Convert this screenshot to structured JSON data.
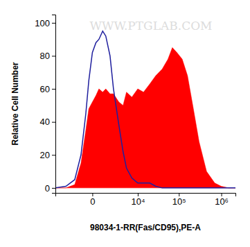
{
  "chart_data": {
    "type": "area",
    "annotation": "WWW.PTGLAB.COM",
    "x_label": "98034-1-RR(Fas/CD95),PE-A",
    "y_label": "Relative Cell Number",
    "log": "x",
    "xlim": [
      -6000,
      2150000
    ],
    "xticks": [
      0,
      {
        "value": 10000,
        "label": "10⁴"
      },
      {
        "value": 100000,
        "label": "10⁵"
      },
      {
        "value": 1000000,
        "label": "10⁶"
      }
    ],
    "ylim": [
      -3,
      105
    ],
    "yticks": [
      0,
      20,
      40,
      60,
      80,
      100
    ],
    "grid": false,
    "x": [
      -6000,
      -3000,
      -1500,
      -800,
      -400,
      -200,
      0,
      200,
      400,
      700,
      1000,
      1500,
      2000,
      3000,
      4000,
      5000,
      7000,
      10000,
      14000,
      20000,
      28000,
      40000,
      55000,
      70000,
      90000,
      120000,
      160000,
      220000,
      300000,
      450000,
      700000,
      1000000,
      1500000,
      2150000
    ],
    "series": [
      {
        "type": "area",
        "color": "#ff0000",
        "values": [
          0,
          0,
          2,
          15,
          35,
          48,
          52,
          56,
          60,
          58,
          60,
          57,
          57,
          52,
          50,
          58,
          55,
          60,
          58,
          63,
          68,
          72,
          78,
          85,
          82,
          78,
          68,
          48,
          28,
          10,
          3,
          1,
          0,
          0
        ]
      },
      {
        "type": "line",
        "color": "#1f1f9e",
        "values": [
          0,
          1,
          5,
          20,
          45,
          65,
          82,
          88,
          90,
          95,
          92,
          80,
          60,
          38,
          22,
          12,
          6,
          3,
          3,
          3,
          1,
          0,
          0,
          0,
          0,
          0,
          0,
          0,
          0,
          0,
          0,
          0,
          0,
          0
        ]
      }
    ]
  }
}
